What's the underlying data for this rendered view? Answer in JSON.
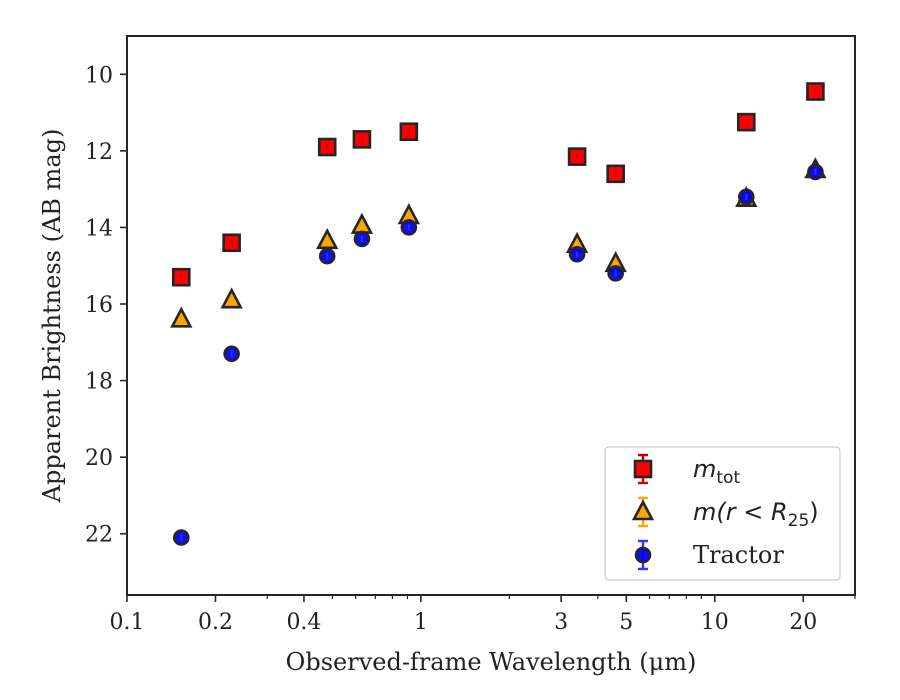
{
  "chart_data": {
    "type": "scatter",
    "xlabel": "Observed-frame Wavelength (μm)",
    "ylabel": "Apparent Brightness (AB mag)",
    "x_scale": "log",
    "y_inverted": true,
    "xlim": [
      0.1,
      30
    ],
    "ylim": [
      23.6,
      9.0
    ],
    "grid": false,
    "legend_position": "lower-right",
    "x_ticks": [
      {
        "value": 0.1,
        "label": "0.1"
      },
      {
        "value": 0.2,
        "label": "0.2"
      },
      {
        "value": 0.4,
        "label": "0.4"
      },
      {
        "value": 1,
        "label": "1"
      },
      {
        "value": 3,
        "label": "3"
      },
      {
        "value": 5,
        "label": "5"
      },
      {
        "value": 10,
        "label": "10"
      },
      {
        "value": 20,
        "label": "20"
      }
    ],
    "y_ticks": [
      {
        "value": 10,
        "label": "10"
      },
      {
        "value": 12,
        "label": "12"
      },
      {
        "value": 14,
        "label": "14"
      },
      {
        "value": 16,
        "label": "16"
      },
      {
        "value": 18,
        "label": "18"
      },
      {
        "value": 20,
        "label": "20"
      },
      {
        "value": 22,
        "label": "22"
      }
    ],
    "series": [
      {
        "name": "m_tot",
        "legend": {
          "base": "m",
          "sub": "tot",
          "suffix": ""
        },
        "marker": "square",
        "color": "#ff0000",
        "error_color": "#cc0000",
        "points": [
          {
            "x": 0.153,
            "y": 15.3
          },
          {
            "x": 0.227,
            "y": 14.4
          },
          {
            "x": 0.48,
            "y": 11.9
          },
          {
            "x": 0.63,
            "y": 11.7
          },
          {
            "x": 0.91,
            "y": 11.5
          },
          {
            "x": 3.4,
            "y": 12.15
          },
          {
            "x": 4.6,
            "y": 12.6
          },
          {
            "x": 12.8,
            "y": 11.25
          },
          {
            "x": 22.0,
            "y": 10.45
          }
        ]
      },
      {
        "name": "m(r < R_25)",
        "legend": {
          "base": "m(r < R",
          "sub": "25",
          "suffix": ")"
        },
        "marker": "triangle",
        "color": "#ffa500",
        "error_color": "#ffa500",
        "points": [
          {
            "x": 0.153,
            "y": 16.4
          },
          {
            "x": 0.227,
            "y": 15.9
          },
          {
            "x": 0.48,
            "y": 14.35
          },
          {
            "x": 0.63,
            "y": 13.95
          },
          {
            "x": 0.91,
            "y": 13.7
          },
          {
            "x": 3.4,
            "y": 14.45
          },
          {
            "x": 4.6,
            "y": 14.95
          },
          {
            "x": 12.8,
            "y": 13.25
          },
          {
            "x": 22.0,
            "y": 12.5
          }
        ]
      },
      {
        "name": "Tractor",
        "legend": {
          "base": "Tractor",
          "sub": "",
          "suffix": ""
        },
        "marker": "circle",
        "color": "#0000ff",
        "error_color": "#3333ff",
        "points": [
          {
            "x": 0.153,
            "y": 22.1
          },
          {
            "x": 0.227,
            "y": 17.3
          },
          {
            "x": 0.48,
            "y": 14.75
          },
          {
            "x": 0.63,
            "y": 14.3
          },
          {
            "x": 0.91,
            "y": 14.0
          },
          {
            "x": 3.4,
            "y": 14.7
          },
          {
            "x": 4.6,
            "y": 15.2
          },
          {
            "x": 12.8,
            "y": 13.2
          },
          {
            "x": 22.0,
            "y": 12.55
          }
        ]
      }
    ]
  }
}
